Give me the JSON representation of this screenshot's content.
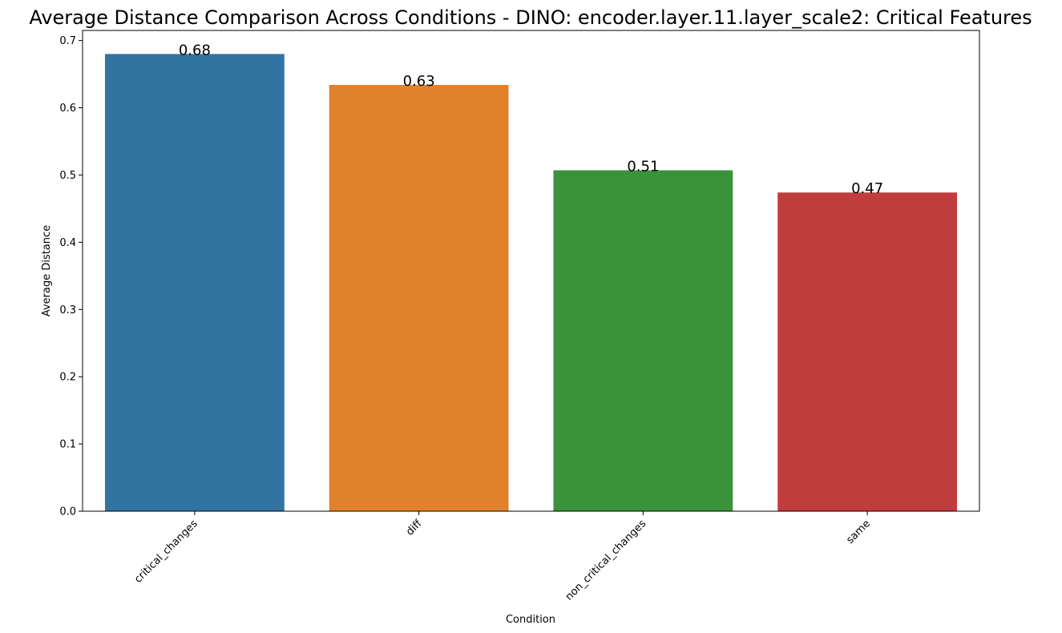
{
  "chart_data": {
    "type": "bar",
    "title": "Average Distance Comparison Across Conditions - DINO: encoder.layer.11.layer_scale2: Critical Features",
    "xlabel": "Condition",
    "ylabel": "Average Distance",
    "categories": [
      "critical_changes",
      "diff",
      "non_critical_changes",
      "same"
    ],
    "values": [
      0.68,
      0.634,
      0.507,
      0.474
    ],
    "value_labels": [
      "0.68",
      "0.63",
      "0.51",
      "0.47"
    ],
    "colors": [
      "#3274a1",
      "#e1812c",
      "#3a923a",
      "#c03d3e"
    ],
    "ylim": [
      0,
      0.715
    ],
    "yticks": [
      0.0,
      0.1,
      0.2,
      0.3,
      0.4,
      0.5,
      0.6,
      0.7
    ],
    "ytick_labels": [
      "0.0",
      "0.1",
      "0.2",
      "0.3",
      "0.4",
      "0.5",
      "0.6",
      "0.7"
    ],
    "grid": false,
    "legend": "none"
  }
}
